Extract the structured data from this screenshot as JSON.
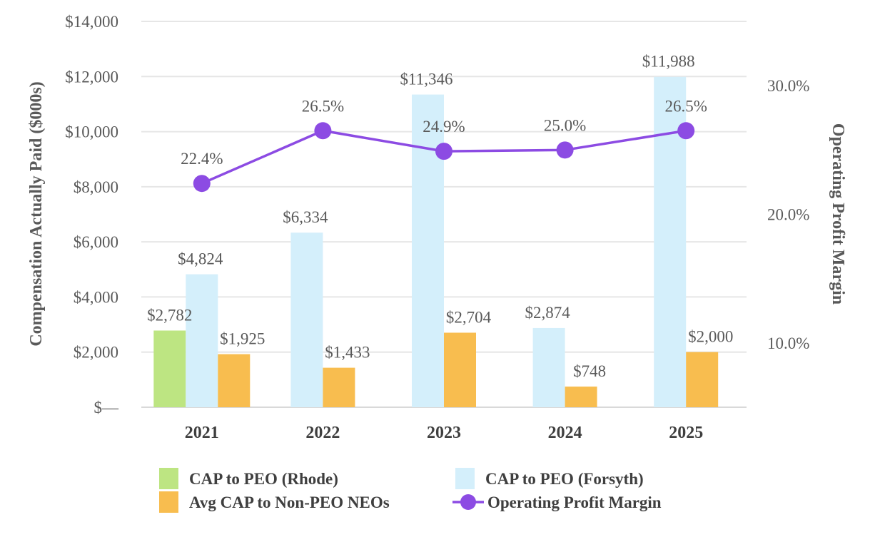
{
  "chart_data": {
    "type": "bar",
    "categories": [
      "2021",
      "2022",
      "2023",
      "2024",
      "2025"
    ],
    "series": [
      {
        "name": "CAP to PEO (Rhode)",
        "values": [
          2782,
          null,
          null,
          null,
          null
        ],
        "labels": [
          "$2,782",
          "",
          "",
          "",
          ""
        ],
        "color": "#bde582",
        "axis": "left"
      },
      {
        "name": "CAP to PEO (Forsyth)",
        "values": [
          4824,
          6334,
          11346,
          2874,
          11988
        ],
        "labels": [
          "$4,824",
          "$6,334",
          "$11,346",
          "$2,874",
          "$11,988"
        ],
        "color": "#d4effb",
        "axis": "left"
      },
      {
        "name": "Avg CAP to Non-PEO NEOs",
        "values": [
          1925,
          1433,
          2704,
          748,
          2000
        ],
        "labels": [
          "$1,925",
          "$1,433",
          "$2,704",
          "$748",
          "$2,000"
        ],
        "color": "#f8bd4f",
        "axis": "left"
      },
      {
        "name": "Operating Profit Margin",
        "type": "line",
        "values": [
          22.4,
          26.5,
          24.9,
          25.0,
          26.5
        ],
        "labels": [
          "22.4%",
          "26.5%",
          "24.9%",
          "25.0%",
          "26.5%"
        ],
        "color": "#8c4be3",
        "axis": "right"
      }
    ],
    "ylabel": "Compensation Actually Paid ($000s)",
    "y2label": "Operating Profit Margin",
    "ylim": [
      0,
      14000
    ],
    "y2lim": [
      5,
      35
    ],
    "yticks": [
      0,
      2000,
      4000,
      6000,
      8000,
      10000,
      12000,
      14000
    ],
    "yticklabels": [
      "$—",
      "$2,000",
      "$4,000",
      "$6,000",
      "$8,000",
      "$10,000",
      "$12,000",
      "$14,000"
    ],
    "y2ticks": [
      10,
      20,
      30
    ],
    "y2ticklabels": [
      "10.0%",
      "20.0%",
      "30.0%"
    ],
    "grid": true,
    "legend_position": "bottom"
  }
}
